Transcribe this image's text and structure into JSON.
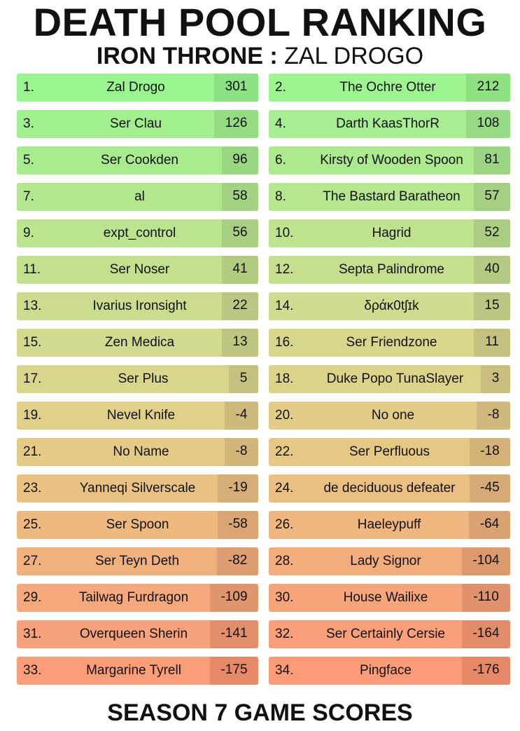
{
  "header": {
    "title": "DEATH POOL RANKING",
    "house": "IRON THRONE :",
    "player": "ZAL DROGO"
  },
  "footer": {
    "text": "SEASON 7 GAME SCORES"
  },
  "entries": [
    {
      "rank": "1.",
      "name": "Zal Drogo",
      "score": "301",
      "color": "#98f590",
      "score_color": "#8be283"
    },
    {
      "rank": "2.",
      "name": "The Ochre Otter",
      "score": "212",
      "color": "#9ef491",
      "score_color": "#8fe081"
    },
    {
      "rank": "3.",
      "name": "Ser Clau",
      "score": "126",
      "color": "#a1ef8f",
      "score_color": "#93dc82"
    },
    {
      "rank": "4.",
      "name": "Darth KaasThorR",
      "score": "108",
      "color": "#a6ee91",
      "score_color": "#96da83"
    },
    {
      "rank": "5.",
      "name": "Ser Cookden",
      "score": "96",
      "color": "#a8eb8e",
      "score_color": "#99d681"
    },
    {
      "rank": "6.",
      "name": "Kirsty of Wooden Spoon",
      "score": "81",
      "color": "#ade98e",
      "score_color": "#9dd481"
    },
    {
      "rank": "7.",
      "name": "al",
      "score": "58",
      "color": "#b3e78f",
      "score_color": "#a2d282"
    },
    {
      "rank": "8.",
      "name": "The Bastard Baratheon",
      "score": "57",
      "color": "#b6e68f",
      "score_color": "#a5d081"
    },
    {
      "rank": "9.",
      "name": "expt_control",
      "score": "56",
      "color": "#bae48e",
      "score_color": "#a8cf81"
    },
    {
      "rank": "10.",
      "name": "Hagrid",
      "score": "52",
      "color": "#bee28e",
      "score_color": "#accd81"
    },
    {
      "rank": "11.",
      "name": "Ser Noser",
      "score": "41",
      "color": "#c3e08e",
      "score_color": "#b1cb81"
    },
    {
      "rank": "12.",
      "name": "Septa Palindrome",
      "score": "40",
      "color": "#c6df8e",
      "score_color": "#b4c981"
    },
    {
      "rank": "13.",
      "name": "Ivarius Ironsight",
      "score": "22",
      "color": "#cbdc8e",
      "score_color": "#b8c781"
    },
    {
      "rank": "14.",
      "name": "δράκ0tʃɪk",
      "score": "15",
      "color": "#cfdb8e",
      "score_color": "#bcc681"
    },
    {
      "rank": "15.",
      "name": "Zen Medica",
      "score": "13",
      "color": "#d3d98e",
      "score_color": "#c0c481"
    },
    {
      "rank": "16.",
      "name": "Ser Friendzone",
      "score": "11",
      "color": "#d6d78d",
      "score_color": "#c3c280"
    },
    {
      "rank": "17.",
      "name": "Ser Plus",
      "score": "5",
      "color": "#d9d58c",
      "score_color": "#c6c07f"
    },
    {
      "rank": "18.",
      "name": "Duke Popo TunaSlayer",
      "score": "3",
      "color": "#dcd38b",
      "score_color": "#c9be7e"
    },
    {
      "rank": "19.",
      "name": "Nevel Knife",
      "score": "-4",
      "color": "#e0cf89",
      "score_color": "#cdba7c"
    },
    {
      "rank": "20.",
      "name": "No one",
      "score": "-8",
      "color": "#e2cd88",
      "score_color": "#cfb87b"
    },
    {
      "rank": "21.",
      "name": "No Name",
      "score": "-8",
      "color": "#e5ca86",
      "score_color": "#d1b57a"
    },
    {
      "rank": "22.",
      "name": "Ser Perfluous",
      "score": "-18",
      "color": "#e7c784",
      "score_color": "#d3b278"
    },
    {
      "rank": "23.",
      "name": "Yanneqi Silverscale",
      "score": "-19",
      "color": "#e9c283",
      "score_color": "#d5ad76"
    },
    {
      "rank": "24.",
      "name": "de deciduous defeater",
      "score": "-45",
      "color": "#ebbe81",
      "score_color": "#d6aa75"
    },
    {
      "rank": "25.",
      "name": "Ser Spoon",
      "score": "-58",
      "color": "#edb980",
      "score_color": "#d8a573"
    },
    {
      "rank": "26.",
      "name": "Haeleypuff",
      "score": "-64",
      "color": "#efb67f",
      "score_color": "#daa272"
    },
    {
      "rank": "27.",
      "name": "Ser Teyn Deth",
      "score": "-82",
      "color": "#f1b17e",
      "score_color": "#dc9d70"
    },
    {
      "rank": "28.",
      "name": "Lady Signor",
      "score": "-104",
      "color": "#f3ad7d",
      "score_color": "#dd996e"
    },
    {
      "rank": "29.",
      "name": "Tailwag Furdragon",
      "score": "-109",
      "color": "#f5a87c",
      "score_color": "#df956d"
    },
    {
      "rank": "30.",
      "name": "House Wailixe",
      "score": "-110",
      "color": "#f6a57b",
      "score_color": "#e0926c"
    },
    {
      "rank": "31.",
      "name": "Overqueen Sherin",
      "score": "-141",
      "color": "#f8a27b",
      "score_color": "#e28e6b"
    },
    {
      "rank": "32.",
      "name": "Ser Certainly Cersie",
      "score": "-164",
      "color": "#f9a07a",
      "score_color": "#e38c6a"
    },
    {
      "rank": "33.",
      "name": "Margarine Tyrell",
      "score": "-175",
      "color": "#fb9d79",
      "score_color": "#e58969"
    },
    {
      "rank": "34.",
      "name": "Pingface",
      "score": "-176",
      "color": "#fc9b78",
      "score_color": "#e68768"
    }
  ]
}
